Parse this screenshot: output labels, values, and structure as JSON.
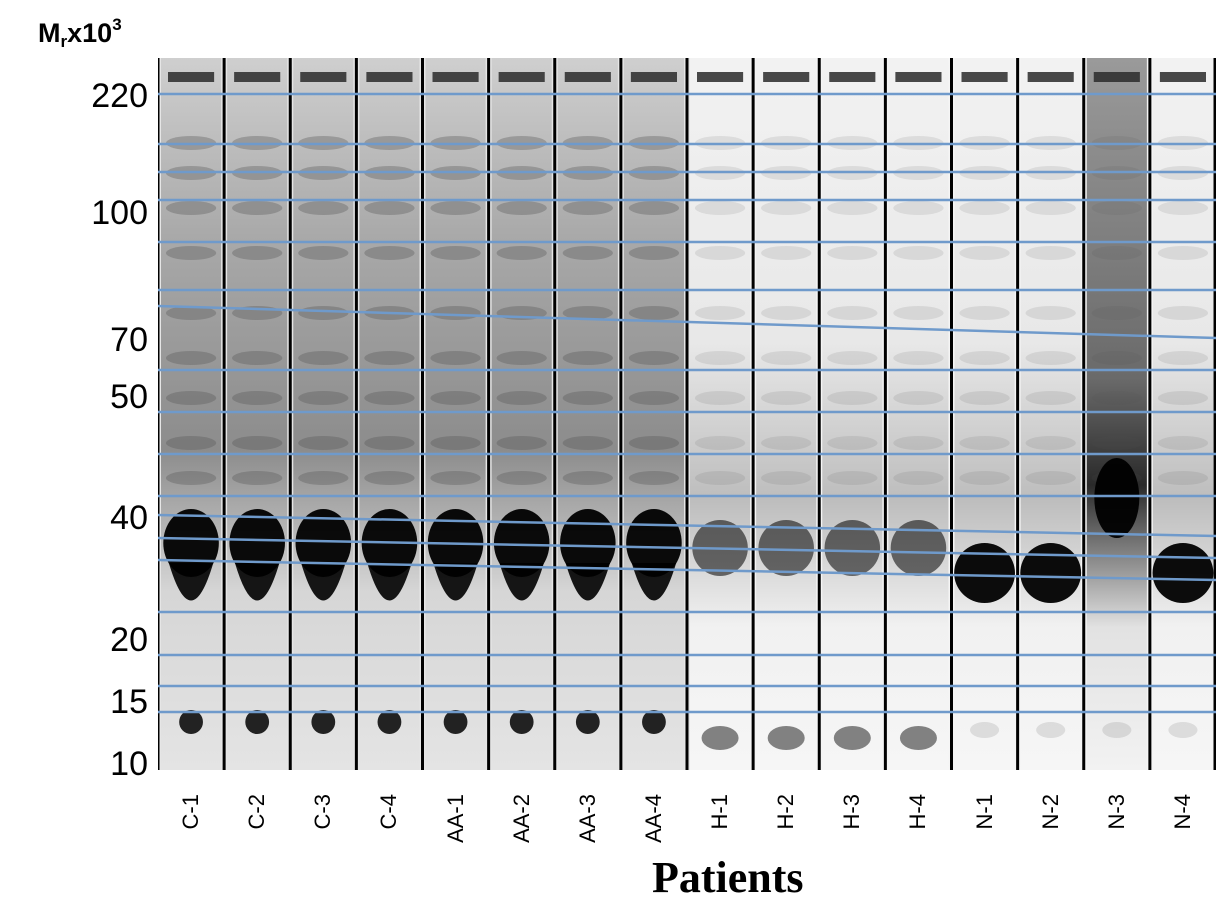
{
  "axis_title": {
    "main": "M",
    "sub": "r",
    "mid": "x10",
    "sup": "3"
  },
  "mw_markers": [
    "220",
    "100",
    "70",
    "50",
    "40",
    "20",
    "15",
    "10"
  ],
  "lanes": [
    "C-1",
    "C-2",
    "C-3",
    "C-4",
    "AA-1",
    "AA-2",
    "AA-3",
    "AA-4",
    "H-1",
    "H-2",
    "H-3",
    "H-4",
    "N-1",
    "N-2",
    "N-3",
    "N-4"
  ],
  "x_axis_title": "Patients",
  "colors": {
    "guide_line": "#6f9acb",
    "lane_divider": "#000000",
    "band": "#000000"
  }
}
